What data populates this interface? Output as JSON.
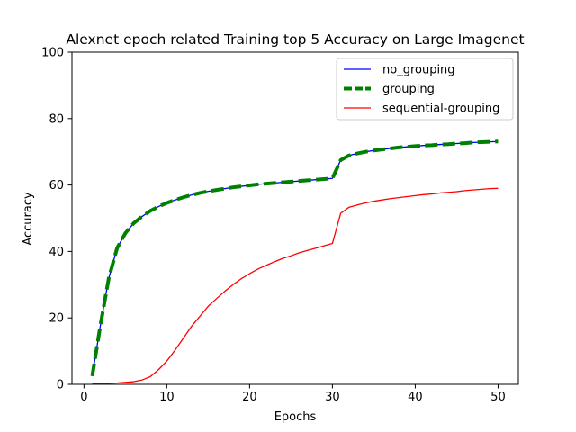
{
  "chart_data": {
    "type": "line",
    "title": "Alexnet epoch related Training top 5 Accuracy on Large Imagenet",
    "xlabel": "Epochs",
    "ylabel": "Accuracy",
    "xlim": [
      -1.45,
      52.45
    ],
    "ylim": [
      0,
      100
    ],
    "xticks": [
      0,
      10,
      20,
      30,
      40,
      50
    ],
    "yticks": [
      0,
      20,
      40,
      60,
      80,
      100
    ],
    "grid": false,
    "legend_position": "top-right",
    "x": [
      1,
      2,
      3,
      4,
      5,
      6,
      7,
      8,
      9,
      10,
      11,
      12,
      13,
      14,
      15,
      16,
      17,
      18,
      19,
      20,
      21,
      22,
      23,
      24,
      25,
      26,
      27,
      28,
      29,
      30,
      31,
      32,
      33,
      34,
      35,
      36,
      37,
      38,
      39,
      40,
      41,
      42,
      43,
      44,
      45,
      46,
      47,
      48,
      49,
      50
    ],
    "series": [
      {
        "name": "no_grouping",
        "color": "#0000ff",
        "style": "solid",
        "values": [
          2.5,
          18.0,
          32.0,
          41.0,
          45.5,
          48.5,
          50.5,
          52.2,
          53.5,
          54.6,
          55.5,
          56.3,
          57.0,
          57.6,
          58.1,
          58.5,
          58.9,
          59.3,
          59.6,
          59.9,
          60.2,
          60.4,
          60.6,
          60.8,
          61.0,
          61.2,
          61.4,
          61.6,
          61.8,
          62.0,
          67.5,
          68.9,
          69.5,
          70.0,
          70.4,
          70.7,
          71.0,
          71.3,
          71.5,
          71.7,
          71.9,
          72.0,
          72.2,
          72.3,
          72.5,
          72.6,
          72.8,
          72.9,
          73.0,
          73.1
        ]
      },
      {
        "name": "grouping",
        "color": "#008000",
        "style": "dashed",
        "values": [
          2.5,
          18.0,
          32.0,
          41.0,
          45.5,
          48.5,
          50.5,
          52.2,
          53.5,
          54.6,
          55.5,
          56.3,
          57.0,
          57.6,
          58.1,
          58.5,
          58.9,
          59.3,
          59.6,
          59.9,
          60.2,
          60.4,
          60.6,
          60.8,
          61.0,
          61.2,
          61.4,
          61.6,
          61.8,
          62.0,
          67.5,
          68.9,
          69.5,
          70.0,
          70.4,
          70.7,
          71.0,
          71.3,
          71.5,
          71.7,
          71.9,
          72.0,
          72.2,
          72.3,
          72.5,
          72.6,
          72.8,
          72.9,
          73.0,
          73.1
        ]
      },
      {
        "name": "sequential-grouping",
        "color": "#ff0000",
        "style": "solid",
        "values": [
          0.2,
          0.2,
          0.3,
          0.4,
          0.6,
          0.8,
          1.3,
          2.3,
          4.4,
          7.0,
          10.3,
          13.9,
          17.5,
          20.5,
          23.5,
          25.8,
          28.0,
          30.0,
          31.8,
          33.3,
          34.7,
          35.8,
          36.9,
          37.9,
          38.7,
          39.6,
          40.3,
          41.0,
          41.7,
          42.4,
          51.5,
          53.3,
          54.0,
          54.6,
          55.1,
          55.5,
          55.9,
          56.2,
          56.5,
          56.8,
          57.1,
          57.3,
          57.6,
          57.8,
          58.0,
          58.3,
          58.5,
          58.7,
          58.9,
          59.0
        ]
      }
    ]
  }
}
